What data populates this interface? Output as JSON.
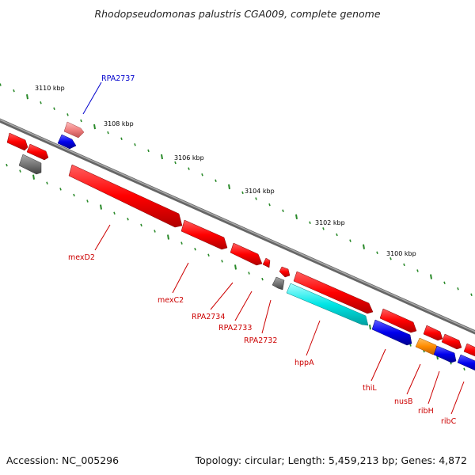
{
  "title": "Rhodopseudomonas palustris CGA009, complete genome",
  "accession": "Accession: NC_005296",
  "topology": "Topology: circular; Length: 5,459,213 bp; Genes: 4,872",
  "colors": {
    "backbone": "#888888",
    "tick": "#2a8a2a",
    "forward": "#ff0000",
    "reverse": "#0000ee",
    "pseudo": "#777777",
    "label_red": "#cc0000",
    "label_blue": "#0000cc",
    "cyan": "#00e5e5",
    "orange": "#ff8c00",
    "pink": "#f08080"
  },
  "kbp_labels": [
    "3110 kbp",
    "3108 kbp",
    "3106 kbp",
    "3104 kbp",
    "3102 kbp",
    "3100 kbp"
  ],
  "gene_labels": [
    {
      "text": "RPA2737",
      "color": "blue"
    },
    {
      "text": "mexD2",
      "color": "red"
    },
    {
      "text": "mexC2",
      "color": "red"
    },
    {
      "text": "RPA2734",
      "color": "red"
    },
    {
      "text": "RPA2733",
      "color": "red"
    },
    {
      "text": "RPA2732",
      "color": "red"
    },
    {
      "text": "hppA",
      "color": "red"
    },
    {
      "text": "thiL",
      "color": "red"
    },
    {
      "text": "nusB",
      "color": "red"
    },
    {
      "text": "ribH",
      "color": "red"
    },
    {
      "text": "ribC",
      "color": "red"
    }
  ]
}
